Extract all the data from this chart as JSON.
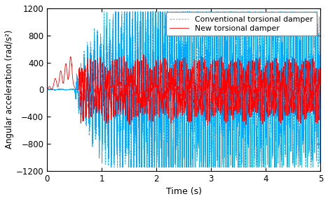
{
  "title": "",
  "xlabel": "Time (s)",
  "ylabel": "Angular acceleration (rad/s²)",
  "xlim": [
    0,
    5
  ],
  "ylim": [
    -1200,
    1200
  ],
  "xticks": [
    0,
    1,
    2,
    3,
    4,
    5
  ],
  "yticks": [
    -1200,
    -800,
    -400,
    0,
    400,
    800,
    1200
  ],
  "legend_labels": [
    "Conventional torsional damper",
    "New torsional damper"
  ],
  "conventional_color": "#00AAFF",
  "new_color": "#FF0000",
  "background_color": "#FFFFFF",
  "dt": 0.0002,
  "t_end": 5.0,
  "seed": 7
}
